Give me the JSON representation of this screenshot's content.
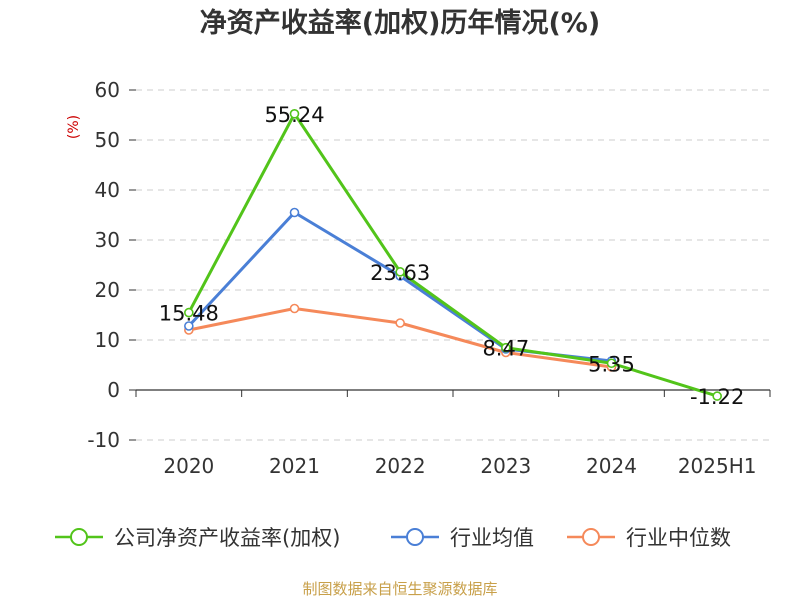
{
  "chart_data": {
    "type": "line",
    "title": "净资产收益率(加权)历年情况(%)",
    "ylabel": "(%)",
    "xlabel": "",
    "categories": [
      "2020",
      "2021",
      "2022",
      "2023",
      "2024",
      "2025H1"
    ],
    "ylim": [
      -10,
      60
    ],
    "yticks": [
      -10,
      0,
      10,
      20,
      30,
      40,
      50,
      60
    ],
    "grid": true,
    "legend_position": "bottom",
    "series": [
      {
        "name": "公司净资产收益率(加权)",
        "color": "#52c41a",
        "values": [
          15.48,
          55.24,
          23.63,
          8.47,
          5.35,
          -1.22
        ],
        "labels": [
          "15.48",
          "55.24",
          "23.63",
          "8.47",
          "5.35",
          "-1.22"
        ]
      },
      {
        "name": "行业均值",
        "color": "#4a7fd6",
        "values": [
          12.8,
          35.5,
          22.8,
          8.2,
          5.8,
          null
        ]
      },
      {
        "name": "行业中位数",
        "color": "#f5895a",
        "values": [
          12.0,
          16.3,
          13.4,
          7.5,
          4.6,
          null
        ]
      }
    ]
  },
  "footer": {
    "source": "制图数据来自恒生聚源数据库"
  }
}
